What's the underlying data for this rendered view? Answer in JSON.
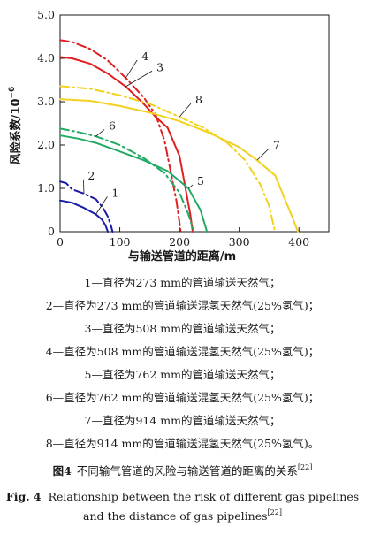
{
  "chart_data": {
    "type": "line",
    "xlabel": "与输送管道的距离/m",
    "ylabel": "风险系数/10",
    "ylabel_exp": "−6",
    "xlim": [
      0,
      450
    ],
    "ylim": [
      0,
      5.0
    ],
    "xticks": [
      0,
      100,
      200,
      300,
      400
    ],
    "yticks": [
      0.0,
      1.0,
      2.0,
      3.0,
      4.0,
      5.0
    ],
    "ytick_labels": [
      "0",
      "1.0",
      "2.0",
      "3.0",
      "4.0",
      "5.0"
    ],
    "series": [
      {
        "name": "1",
        "color": "#1a1aa8",
        "dash": "solid",
        "label_at": [
          85,
          0.85
        ],
        "points": [
          [
            0,
            0.72
          ],
          [
            20,
            0.67
          ],
          [
            40,
            0.55
          ],
          [
            60,
            0.4
          ],
          [
            70,
            0.28
          ],
          [
            76,
            0.15
          ],
          [
            80,
            0.0
          ]
        ]
      },
      {
        "name": "2",
        "color": "#1a1aa8",
        "dash": "dashdot",
        "label_at": [
          45,
          1.25
        ],
        "points": [
          [
            0,
            1.16
          ],
          [
            10,
            1.12
          ],
          [
            20,
            0.98
          ],
          [
            40,
            0.88
          ],
          [
            60,
            0.75
          ],
          [
            72,
            0.55
          ],
          [
            80,
            0.35
          ],
          [
            85,
            0.15
          ],
          [
            88,
            0.0
          ]
        ]
      },
      {
        "name": "3",
        "color": "#e02020",
        "dash": "solid",
        "label_at": [
          160,
          3.75
        ],
        "points": [
          [
            0,
            4.03
          ],
          [
            20,
            4.0
          ],
          [
            50,
            3.88
          ],
          [
            80,
            3.65
          ],
          [
            110,
            3.35
          ],
          [
            140,
            2.95
          ],
          [
            160,
            2.65
          ],
          [
            180,
            2.4
          ],
          [
            200,
            1.75
          ],
          [
            210,
            1.0
          ],
          [
            218,
            0.4
          ],
          [
            222,
            0.0
          ]
        ]
      },
      {
        "name": "4",
        "color": "#e02020",
        "dash": "dashdot",
        "label_at": [
          135,
          4.0
        ],
        "points": [
          [
            0,
            4.42
          ],
          [
            20,
            4.38
          ],
          [
            50,
            4.22
          ],
          [
            80,
            3.95
          ],
          [
            110,
            3.55
          ],
          [
            140,
            3.1
          ],
          [
            160,
            2.7
          ],
          [
            175,
            2.1
          ],
          [
            185,
            1.4
          ],
          [
            195,
            0.7
          ],
          [
            202,
            0.0
          ]
        ]
      },
      {
        "name": "5",
        "color": "#22aa66",
        "dash": "solid",
        "label_at": [
          228,
          1.12
        ],
        "points": [
          [
            0,
            2.22
          ],
          [
            30,
            2.15
          ],
          [
            60,
            2.05
          ],
          [
            100,
            1.85
          ],
          [
            140,
            1.65
          ],
          [
            180,
            1.4
          ],
          [
            215,
            1.0
          ],
          [
            235,
            0.5
          ],
          [
            246,
            0.0
          ]
        ]
      },
      {
        "name": "6",
        "color": "#22aa66",
        "dash": "dashdot",
        "label_at": [
          80,
          2.4
        ],
        "points": [
          [
            0,
            2.38
          ],
          [
            30,
            2.3
          ],
          [
            60,
            2.2
          ],
          [
            100,
            2.0
          ],
          [
            140,
            1.7
          ],
          [
            175,
            1.35
          ],
          [
            200,
            0.9
          ],
          [
            215,
            0.4
          ],
          [
            224,
            0.0
          ]
        ]
      },
      {
        "name": "7",
        "color": "#f2d21e",
        "dash": "solid",
        "label_at": [
          355,
          1.95
        ],
        "points": [
          [
            0,
            3.06
          ],
          [
            50,
            3.02
          ],
          [
            100,
            2.9
          ],
          [
            150,
            2.75
          ],
          [
            200,
            2.55
          ],
          [
            250,
            2.28
          ],
          [
            300,
            1.95
          ],
          [
            330,
            1.65
          ],
          [
            360,
            1.3
          ],
          [
            375,
            0.8
          ],
          [
            390,
            0.3
          ],
          [
            398,
            0.0
          ]
        ]
      },
      {
        "name": "8",
        "color": "#f2d21e",
        "dash": "dashdot",
        "label_at": [
          225,
          3.0
        ],
        "points": [
          [
            0,
            3.36
          ],
          [
            50,
            3.3
          ],
          [
            100,
            3.15
          ],
          [
            150,
            2.95
          ],
          [
            200,
            2.65
          ],
          [
            240,
            2.4
          ],
          [
            280,
            2.05
          ],
          [
            310,
            1.65
          ],
          [
            335,
            1.1
          ],
          [
            350,
            0.6
          ],
          [
            360,
            0.0
          ]
        ]
      }
    ]
  },
  "legend": [
    "1—直径为273 mm的管道输送天然气；",
    "2—直径为273 mm的管道输送混氢天然气(25%氢气)；",
    "3—直径为508 mm的管道输送天然气；",
    "4—直径为508 mm的管道输送混氢天然气(25%氢气)；",
    "5—直径为762 mm的管道输送天然气；",
    "6—直径为762 mm的管道输送混氢天然气(25%氢气)；",
    "7—直径为914 mm的管道输送天然气；",
    "8—直径为914 mm的管道输送混氢天然气(25%氢气)。"
  ],
  "caption_cn": {
    "fig_no": "图4",
    "text": "不同输气管道的风险与输送管道的距离的关系",
    "ref": "[22]"
  },
  "caption_en": {
    "fig_no": "Fig. 4",
    "text": "Relationship between the risk of different gas pipelines and the distance of gas pipelines",
    "ref": "[22]"
  }
}
